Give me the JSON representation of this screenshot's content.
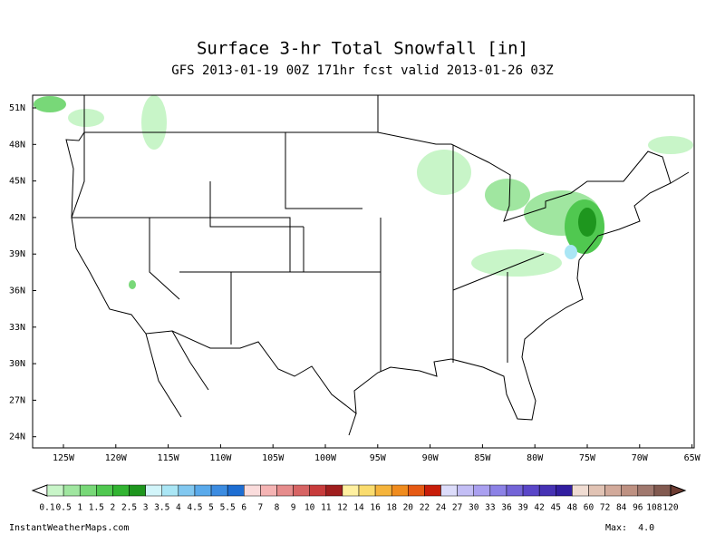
{
  "header": {
    "title": "Surface 3-hr Total Snowfall [in]",
    "subtitle": "GFS 2013-01-19 00Z 171hr fcst valid 2013-01-26 03Z"
  },
  "map": {
    "lat_labels": [
      "51N",
      "48N",
      "45N",
      "42N",
      "39N",
      "36N",
      "33N",
      "30N",
      "27N",
      "24N"
    ],
    "lon_labels": [
      "125W",
      "120W",
      "115W",
      "110W",
      "105W",
      "100W",
      "95W",
      "90W",
      "85W",
      "80W",
      "75W",
      "70W",
      "65W"
    ]
  },
  "colorbar": {
    "labels": [
      "0.1",
      "0.5",
      "1",
      "1.5",
      "2",
      "2.5",
      "3",
      "3.5",
      "4",
      "4.5",
      "5",
      "5.5",
      "6",
      "7",
      "8",
      "9",
      "10",
      "11",
      "12",
      "14",
      "16",
      "18",
      "20",
      "22",
      "24",
      "27",
      "30",
      "33",
      "36",
      "39",
      "42",
      "45",
      "48",
      "60",
      "72",
      "84",
      "96",
      "108",
      "120"
    ],
    "colors": [
      "#c8f5c8",
      "#a0e6a0",
      "#78d878",
      "#50c850",
      "#32b432",
      "#1e961e",
      "#d2f5fa",
      "#aae6f5",
      "#82c8f0",
      "#5aaaeb",
      "#3c8ce1",
      "#1e6ed2",
      "#fadcdc",
      "#f5b4b4",
      "#e68c8c",
      "#d76464",
      "#c83c3c",
      "#a01e1e",
      "#fff0a0",
      "#fadc6e",
      "#f5b43c",
      "#f08c1e",
      "#e65a14",
      "#c81e0a",
      "#dcdcfa",
      "#c3beF5",
      "#aaa0f0",
      "#8c82e6",
      "#7364d7",
      "#5a46c8",
      "#4632b4",
      "#321ea0",
      "#f0dcd2",
      "#e1c3b4",
      "#d2aa9b",
      "#be9182",
      "#a0786e",
      "#825a50"
    ]
  },
  "footer": {
    "source": "InstantWeatherMaps.com",
    "max": "Max:  4.0"
  }
}
